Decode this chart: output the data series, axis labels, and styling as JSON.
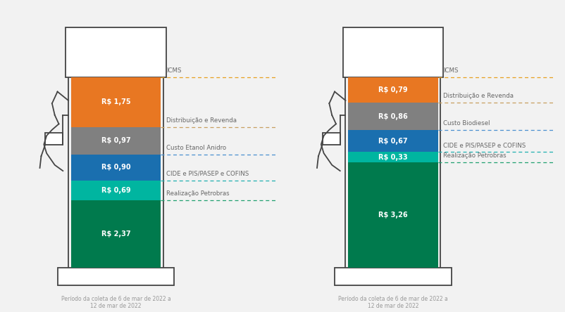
{
  "background_color": "#f2f2f2",
  "gasoline": {
    "segments": [
      {
        "label": "R$ 2,37",
        "value": 2.37,
        "color": "#007a4d"
      },
      {
        "label": "R$ 0,69",
        "value": 0.69,
        "color": "#00b5a0"
      },
      {
        "label": "R$ 0,90",
        "value": 0.9,
        "color": "#1a6faf"
      },
      {
        "label": "R$ 0,97",
        "value": 0.97,
        "color": "#808080"
      },
      {
        "label": "R$ 1,75",
        "value": 1.75,
        "color": "#e87722"
      }
    ],
    "annotations": [
      {
        "text": "ICMS",
        "level": 4,
        "color": "#e8a020",
        "dash": "orange"
      },
      {
        "text": "Distribuição e Revenda",
        "level": 3,
        "color": "#c8a060",
        "dash": "orange"
      },
      {
        "text": "Custo Etanol Anidro",
        "level": 2,
        "color": "#4a90d0",
        "dash": "blue"
      },
      {
        "text": "CIDE e PIS/PASEP e COFINS",
        "level": 1,
        "color": "#20b0b0",
        "dash": "cyan"
      },
      {
        "text": "Realização Petrobras",
        "level": 0,
        "color": "#20a070",
        "dash": "green"
      }
    ],
    "period": "Período da coleta de 6 de mar de 2022 a\n12 de mar de 2022"
  },
  "diesel": {
    "segments": [
      {
        "label": "R$ 3,26",
        "value": 3.26,
        "color": "#007a4d"
      },
      {
        "label": "R$ 0,33",
        "value": 0.33,
        "color": "#00b5a0"
      },
      {
        "label": "R$ 0,67",
        "value": 0.67,
        "color": "#1a6faf"
      },
      {
        "label": "R$ 0,86",
        "value": 0.86,
        "color": "#808080"
      },
      {
        "label": "R$ 0,79",
        "value": 0.79,
        "color": "#e87722"
      }
    ],
    "annotations": [
      {
        "text": "ICMS",
        "level": 4,
        "color": "#e8a020",
        "dash": "orange"
      },
      {
        "text": "Distribuição e Revenda",
        "level": 3,
        "color": "#c8a060",
        "dash": "orange"
      },
      {
        "text": "Custo Biodiesel",
        "level": 2,
        "color": "#4a90d0",
        "dash": "blue"
      },
      {
        "text": "CIDE e PIS/PASEP e COFINS",
        "level": 1,
        "color": "#20b0b0",
        "dash": "cyan"
      },
      {
        "text": "Realização Petrobras",
        "level": 0,
        "color": "#20a070",
        "dash": "green"
      }
    ],
    "period": "Período da coleta de 6 de mar de 2022 a\n12 de mar de 2022"
  },
  "annotation_line_colors": {
    "orange": "#e8a020",
    "blue": "#4a90d0",
    "cyan": "#20b0b0",
    "green": "#20a070"
  },
  "ann_dash_map": [
    "#e8a020",
    "#c8a060",
    "#4a90d0",
    "#20b0b0",
    "#20a070"
  ]
}
